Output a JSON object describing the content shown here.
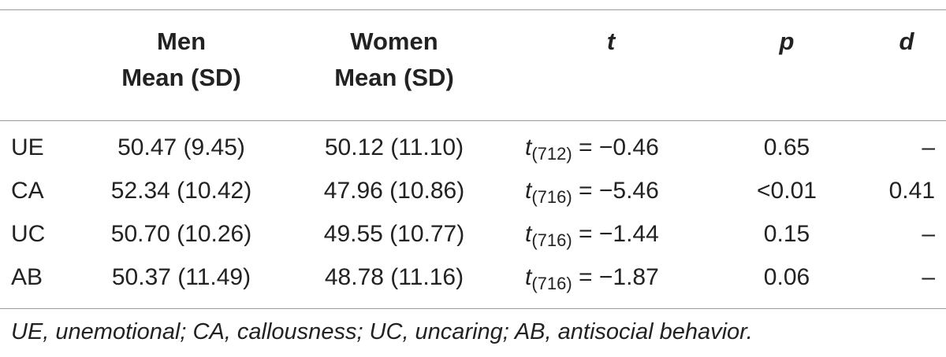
{
  "table": {
    "headers": {
      "men": [
        "Men",
        "Mean (SD)"
      ],
      "women": [
        "Women",
        "Mean (SD)"
      ],
      "t": "t",
      "p": "p",
      "d": "d"
    },
    "rows": [
      {
        "label": "UE",
        "men": "50.47 (9.45)",
        "women": "50.12 (11.10)",
        "t_sym": "t",
        "t_df": "(712)",
        "t_val": " = −0.46",
        "p": "0.65",
        "d": "–"
      },
      {
        "label": "CA",
        "men": "52.34 (10.42)",
        "women": "47.96 (10.86)",
        "t_sym": "t",
        "t_df": "(716)",
        "t_val": " = −5.46",
        "p": "<0.01",
        "d": "0.41"
      },
      {
        "label": "UC",
        "men": "50.70 (10.26)",
        "women": "49.55 (10.77)",
        "t_sym": "t",
        "t_df": "(716)",
        "t_val": " = −1.44",
        "p": "0.15",
        "d": "–"
      },
      {
        "label": "AB",
        "men": "50.37 (11.49)",
        "women": "48.78 (11.16)",
        "t_sym": "t",
        "t_df": "(716)",
        "t_val": " = −1.87",
        "p": "0.06",
        "d": "–"
      }
    ],
    "footnote": "UE, unemotional; CA, callousness; UC, uncaring; AB, antisocial behavior."
  }
}
